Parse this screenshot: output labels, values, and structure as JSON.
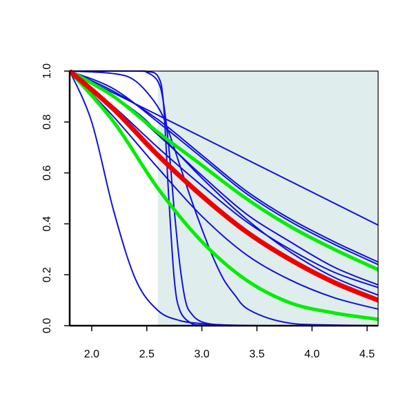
{
  "chart_data": {
    "type": "line",
    "title": "",
    "xlabel": "",
    "ylabel": "",
    "xlim": [
      1.8,
      4.6
    ],
    "ylim": [
      0.0,
      1.0
    ],
    "grid": false,
    "shaded_region": {
      "x_from": 2.6,
      "x_to": 4.6,
      "color": "#dfeded"
    },
    "x_ticks": [
      2.0,
      2.5,
      3.0,
      3.5,
      4.0,
      4.5
    ],
    "x_tick_labels": [
      "2.0",
      "2.5",
      "3.0",
      "3.5",
      "4.0",
      "4.5"
    ],
    "y_ticks": [
      0.0,
      0.2,
      0.4,
      0.6,
      0.8,
      1.0
    ],
    "y_tick_labels": [
      "0.0",
      "0.2",
      "0.4",
      "0.6",
      "0.8",
      "1.0"
    ],
    "colors": {
      "blue": "#1010dd",
      "green": "#00ee00",
      "red": "#ee0000",
      "axis": "#000000"
    },
    "series": [
      {
        "color": "#1010dd",
        "width": 2,
        "x": [
          1.8,
          2.0,
          2.2,
          2.4,
          2.6,
          2.8,
          3.0,
          3.2,
          3.4,
          3.6,
          3.8,
          4.0,
          4.2,
          4.4,
          4.6
        ],
        "y": [
          1.0,
          0.8,
          0.45,
          0.18,
          0.06,
          0.02,
          0.008,
          0.003,
          0.001,
          0.0,
          0.0,
          0.0,
          0.0,
          0.0,
          0.0
        ]
      },
      {
        "color": "#1010dd",
        "width": 2,
        "x": [
          1.8,
          2.4,
          2.5,
          2.6,
          2.65,
          2.7,
          2.75,
          2.8,
          2.9,
          3.0,
          3.2,
          3.6,
          4.0,
          4.6
        ],
        "y": [
          1.0,
          1.0,
          0.998,
          0.98,
          0.88,
          0.5,
          0.18,
          0.06,
          0.01,
          0.002,
          0.0,
          0.0,
          0.0,
          0.0
        ]
      },
      {
        "color": "#1010dd",
        "width": 2,
        "x": [
          1.8,
          2.4,
          2.5,
          2.6,
          2.65,
          2.7,
          2.75,
          2.8,
          2.85,
          2.9,
          3.0,
          3.2,
          3.6,
          4.6
        ],
        "y": [
          1.0,
          1.0,
          0.995,
          0.96,
          0.88,
          0.7,
          0.45,
          0.24,
          0.1,
          0.05,
          0.015,
          0.002,
          0.0,
          0.0
        ]
      },
      {
        "color": "#1010dd",
        "width": 2,
        "x": [
          1.8,
          2.2,
          2.4,
          2.6,
          2.7,
          2.8,
          2.9,
          3.0,
          3.1,
          3.2,
          3.3,
          3.4,
          3.6,
          3.8,
          4.0,
          4.6
        ],
        "y": [
          1.0,
          0.99,
          0.96,
          0.86,
          0.76,
          0.63,
          0.5,
          0.38,
          0.27,
          0.18,
          0.12,
          0.07,
          0.03,
          0.01,
          0.004,
          0.0
        ]
      },
      {
        "color": "#1010dd",
        "width": 2,
        "x": [
          1.8,
          4.6
        ],
        "y": [
          1.0,
          0.395
        ]
      },
      {
        "color": "#1010dd",
        "width": 2,
        "x": [
          1.8,
          2.2,
          2.6,
          3.0,
          3.4,
          3.8,
          4.2,
          4.6
        ],
        "y": [
          1.0,
          0.92,
          0.81,
          0.67,
          0.53,
          0.42,
          0.33,
          0.25
        ]
      },
      {
        "color": "#1010dd",
        "width": 2,
        "x": [
          1.8,
          2.2,
          2.6,
          3.0,
          3.4,
          3.8,
          4.2,
          4.6
        ],
        "y": [
          1.0,
          0.93,
          0.8,
          0.66,
          0.52,
          0.41,
          0.32,
          0.24
        ]
      },
      {
        "color": "#1010dd",
        "width": 2,
        "x": [
          1.8,
          2.2,
          2.6,
          3.0,
          3.4,
          3.8,
          4.2,
          4.6
        ],
        "y": [
          1.0,
          0.9,
          0.75,
          0.59,
          0.44,
          0.33,
          0.23,
          0.16
        ]
      },
      {
        "color": "#1010dd",
        "width": 2,
        "x": [
          1.8,
          2.2,
          2.6,
          3.0,
          3.4,
          3.8,
          4.2,
          4.6
        ],
        "y": [
          1.0,
          0.86,
          0.7,
          0.55,
          0.41,
          0.3,
          0.21,
          0.15
        ]
      },
      {
        "color": "#1010dd",
        "width": 2,
        "x": [
          1.8,
          2.0,
          2.4,
          2.6,
          3.0,
          3.4,
          3.8,
          4.2,
          4.6
        ],
        "y": [
          1.0,
          0.96,
          0.84,
          0.76,
          0.58,
          0.42,
          0.29,
          0.19,
          0.12
        ]
      },
      {
        "color": "#1010dd",
        "width": 2,
        "x": [
          1.8,
          2.2,
          2.6,
          3.0,
          3.4,
          3.8,
          4.2,
          4.6
        ],
        "y": [
          1.0,
          0.82,
          0.62,
          0.43,
          0.28,
          0.18,
          0.11,
          0.065
        ]
      },
      {
        "color": "#00ee00",
        "width": 5,
        "x": [
          1.8,
          2.2,
          2.6,
          3.0,
          3.4,
          3.8,
          4.2,
          4.6
        ],
        "y": [
          1.0,
          0.9,
          0.76,
          0.63,
          0.5,
          0.39,
          0.3,
          0.22
        ]
      },
      {
        "color": "#00ee00",
        "width": 5,
        "x": [
          1.8,
          2.2,
          2.6,
          3.0,
          3.4,
          3.8,
          4.2,
          4.6
        ],
        "y": [
          1.0,
          0.8,
          0.54,
          0.33,
          0.18,
          0.09,
          0.05,
          0.025
        ]
      },
      {
        "color": "#ee0000",
        "width": 7,
        "x": [
          1.8,
          2.2,
          2.6,
          3.0,
          3.4,
          3.8,
          4.2,
          4.6
        ],
        "y": [
          1.0,
          0.85,
          0.67,
          0.51,
          0.37,
          0.26,
          0.17,
          0.1
        ]
      }
    ]
  }
}
